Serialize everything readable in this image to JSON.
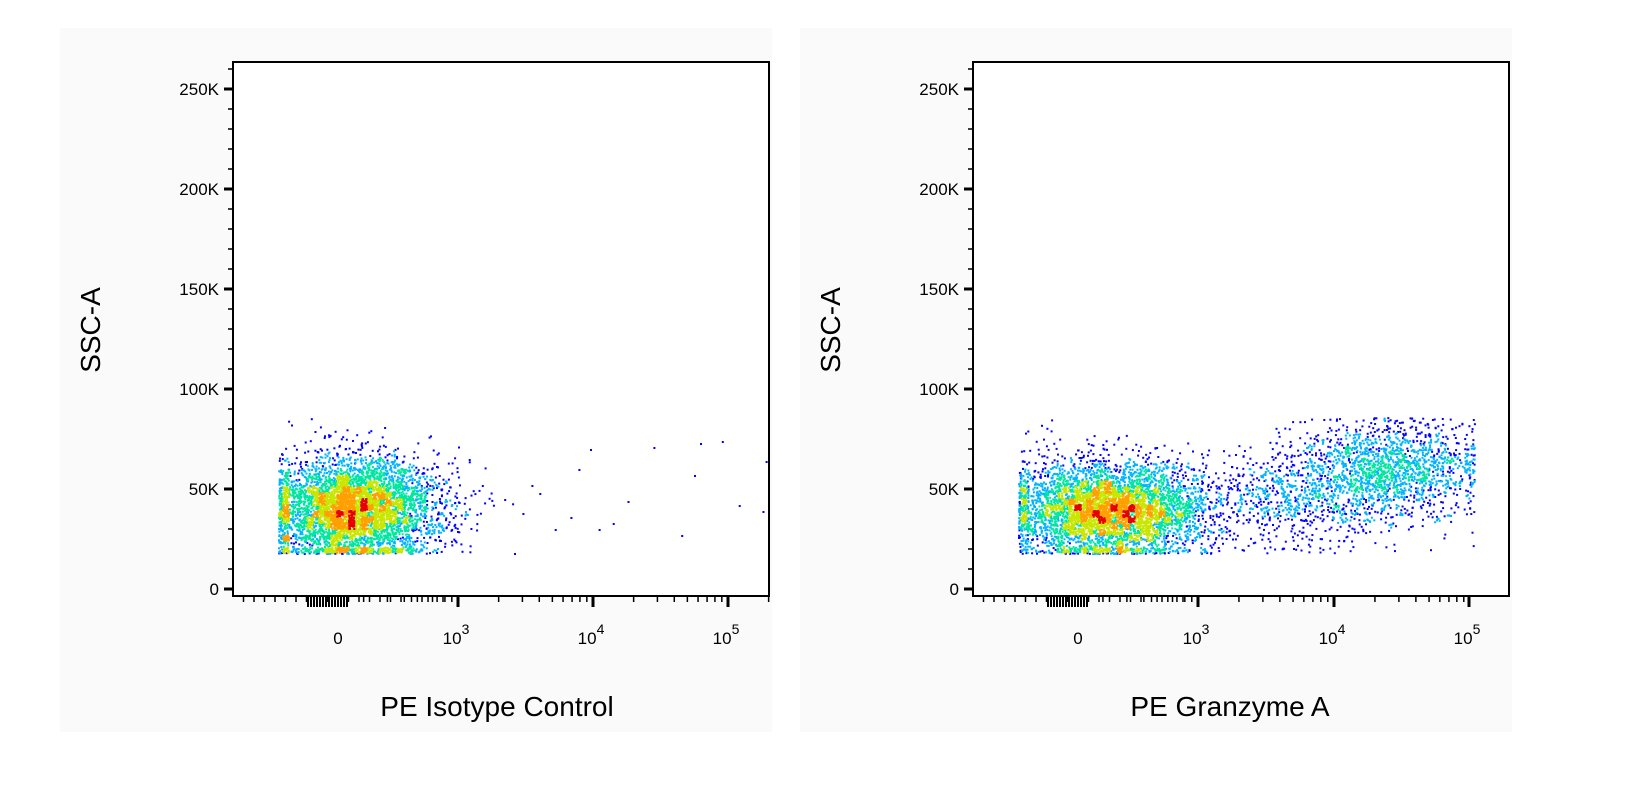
{
  "colors": {
    "scale": [
      "#0000ff",
      "#00b4ff",
      "#00e6a0",
      "#c8e600",
      "#ffa000",
      "#e60000"
    ]
  },
  "chart_data": [
    {
      "type": "scatter",
      "title": "",
      "xlabel": "PE Isotype Control",
      "ylabel": "SSC-A",
      "xscale": "biexponential",
      "x_ticks": [
        "0",
        "10",
        "10",
        "10"
      ],
      "x_tick_exponents": [
        "",
        "3",
        "4",
        "5"
      ],
      "y_ticks": [
        "0",
        "50K",
        "100K",
        "150K",
        "200K",
        "250K"
      ],
      "ylim": [
        0,
        262144
      ],
      "populations": [
        {
          "name": "",
          "x_center": 120,
          "y_center": 40000,
          "x_spread_decades": 0.35,
          "y_spread": 13000,
          "count": 5200
        }
      ],
      "sparse_events": [
        [
          1500,
          52000
        ],
        [
          2200,
          45000
        ],
        [
          3000,
          38000
        ],
        [
          4000,
          48000
        ],
        [
          5200,
          30000
        ],
        [
          6800,
          36000
        ],
        [
          9500,
          70000
        ],
        [
          14000,
          33000
        ],
        [
          18000,
          44000
        ],
        [
          28000,
          71000
        ],
        [
          45000,
          27000
        ],
        [
          56000,
          57000
        ],
        [
          62000,
          73000
        ],
        [
          90000,
          74000
        ],
        [
          120000,
          42000
        ],
        [
          2600,
          18000
        ],
        [
          11000,
          30000
        ],
        [
          1200,
          65000
        ],
        [
          3500,
          52000
        ],
        [
          7800,
          60000
        ],
        [
          180000,
          39000
        ],
        [
          190000,
          64000
        ]
      ],
      "grid": false,
      "legend": "none"
    },
    {
      "type": "scatter",
      "title": "",
      "xlabel": "PE Granzyme A",
      "ylabel": "SSC-A",
      "xscale": "biexponential",
      "x_ticks": [
        "0",
        "10",
        "10",
        "10"
      ],
      "x_tick_exponents": [
        "",
        "3",
        "4",
        "5"
      ],
      "y_ticks": [
        "0",
        "50K",
        "100K",
        "150K",
        "200K",
        "250K"
      ],
      "ylim": [
        0,
        262144
      ],
      "populations": [
        {
          "name": "",
          "x_center": 250,
          "y_center": 40000,
          "x_spread_decades": 0.4,
          "y_spread": 12000,
          "count": 5000
        },
        {
          "name": "",
          "x_center": 25000,
          "y_center": 62000,
          "x_spread_decades": 0.35,
          "y_spread": 11000,
          "count": 1500
        },
        {
          "name": "",
          "x_center": 6000,
          "y_center": 45000,
          "x_spread_decades": 0.45,
          "y_spread": 11000,
          "count": 900
        }
      ],
      "sparse_events": [],
      "grid": false,
      "legend": "none"
    }
  ]
}
